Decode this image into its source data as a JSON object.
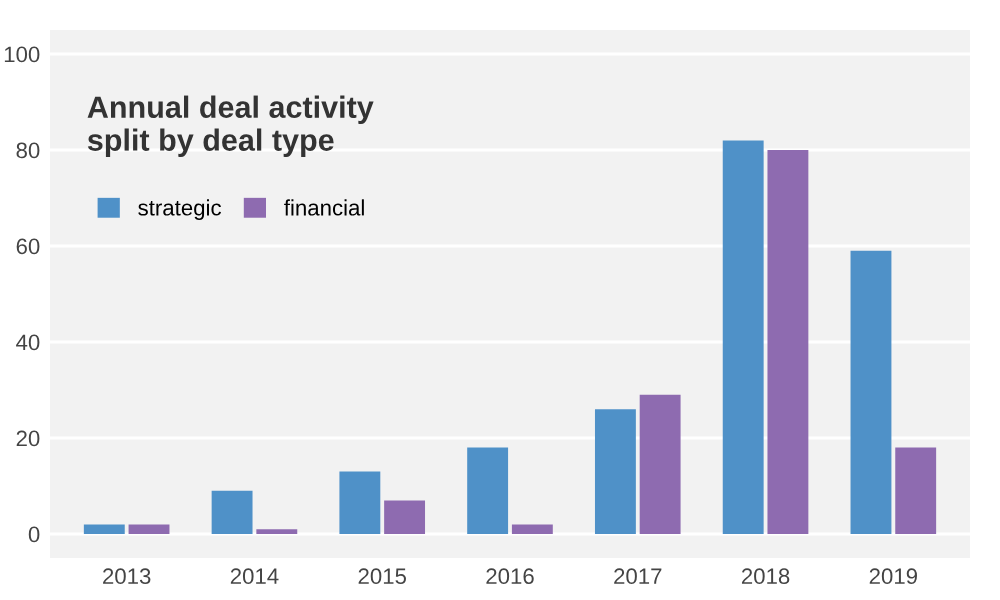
{
  "chart_data": {
    "type": "bar",
    "title": "Annual deal activity\nsplit by deal type",
    "categories": [
      "2013",
      "2014",
      "2015",
      "2016",
      "2017",
      "2018",
      "2019"
    ],
    "series": [
      {
        "name": "strategic",
        "color": "#4f91c8",
        "values": [
          2,
          9,
          13,
          18,
          26,
          82,
          59
        ]
      },
      {
        "name": "financial",
        "color": "#8e6bb0",
        "values": [
          2,
          1,
          7,
          2,
          29,
          80,
          18
        ]
      }
    ],
    "ylim": [
      -5,
      105
    ],
    "yticks": [
      0,
      20,
      40,
      60,
      80,
      100
    ],
    "grid": "y",
    "legend": "top left"
  }
}
